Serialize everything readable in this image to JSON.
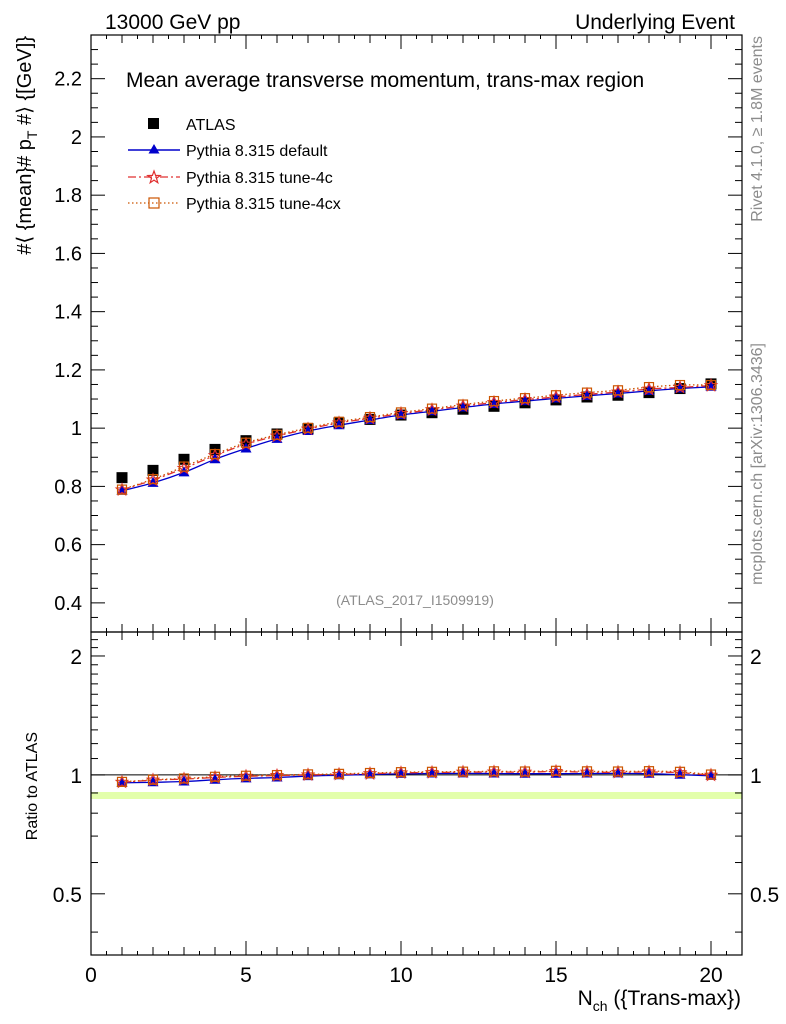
{
  "header": {
    "left": "13000 GeV pp",
    "right": "Underlying Event"
  },
  "side": {
    "rivet": "Rivet 4.1.0, ≥ 1.8M events",
    "mcplots": "mcplots.cern.ch [arXiv:1306.3436]"
  },
  "chart_data": [
    {
      "type": "scatter",
      "title": "Mean average transverse momentum, trans-max region",
      "watermark": "(ATLAS_2017_I1509919)",
      "ylabel": "#⟨ {mean}# p_T #⟩ {[GeV]}",
      "ylabel_parts": {
        "pre": "#⟨ {mean}# p",
        "sub": "T",
        "post": " #⟩ {[GeV]}"
      },
      "xlim": [
        0,
        21
      ],
      "ylim": [
        0.3,
        2.35
      ],
      "yticks": [
        0.4,
        0.6,
        0.8,
        1,
        1.2,
        1.4,
        1.6,
        1.8,
        2,
        2.2
      ],
      "ytick_labels": [
        "0.4",
        "0.6",
        "0.8",
        "1",
        "1.2",
        "1.4",
        "1.6",
        "1.8",
        "2",
        "2.2"
      ],
      "x": [
        1,
        2,
        3,
        4,
        5,
        6,
        7,
        8,
        9,
        10,
        11,
        12,
        13,
        14,
        15,
        16,
        17,
        18,
        19,
        20
      ],
      "series": [
        {
          "name": "ATLAS",
          "color": "#000000",
          "marker": "square-filled",
          "values": [
            0.83,
            0.855,
            0.893,
            0.927,
            0.957,
            0.98,
            0.998,
            1.018,
            1.03,
            1.045,
            1.053,
            1.065,
            1.075,
            1.087,
            1.097,
            1.107,
            1.113,
            1.122,
            1.136,
            1.152
          ]
        },
        {
          "name": "Pythia 8.315 default",
          "color": "#0000cc",
          "marker": "triangle-filled",
          "line": "solid",
          "values": [
            0.785,
            0.812,
            0.848,
            0.893,
            0.93,
            0.963,
            0.99,
            1.01,
            1.028,
            1.045,
            1.058,
            1.071,
            1.083,
            1.093,
            1.102,
            1.111,
            1.119,
            1.128,
            1.136,
            1.142
          ]
        },
        {
          "name": "Pythia 8.315 tune-4c",
          "color": "#e03030",
          "marker": "star-open",
          "line": "dashdot",
          "values": [
            0.788,
            0.822,
            0.862,
            0.906,
            0.945,
            0.973,
            0.997,
            1.018,
            1.034,
            1.05,
            1.063,
            1.076,
            1.088,
            1.098,
            1.107,
            1.116,
            1.124,
            1.134,
            1.14,
            1.146
          ]
        },
        {
          "name": "Pythia 8.315 tune-4cx",
          "color": "#cc5500",
          "marker": "square-open",
          "line": "dotted",
          "values": [
            0.789,
            0.825,
            0.868,
            0.911,
            0.95,
            0.977,
            1.001,
            1.022,
            1.038,
            1.054,
            1.067,
            1.081,
            1.093,
            1.103,
            1.113,
            1.122,
            1.13,
            1.141,
            1.148,
            1.148
          ]
        }
      ]
    },
    {
      "type": "scatter",
      "ylabel": "Ratio to ATLAS",
      "xlabel": "N_ch ({Trans-max})",
      "xlabel_parts": {
        "pre": "N",
        "sub": "ch",
        "post": " ({Trans-max})"
      },
      "xlim": [
        0,
        21
      ],
      "ylim": [
        0.35,
        2.3
      ],
      "yticks": [
        0.5,
        1,
        2
      ],
      "ytick_labels": [
        "0.5",
        "1",
        "2"
      ],
      "xticks": [
        0,
        5,
        10,
        15,
        20
      ],
      "xtick_labels": [
        "0",
        "5",
        "10",
        "15",
        "20"
      ],
      "reference": 1,
      "x": [
        1,
        2,
        3,
        4,
        5,
        6,
        7,
        8,
        9,
        10,
        11,
        12,
        13,
        14,
        15,
        16,
        17,
        18,
        19,
        20
      ],
      "series": [
        {
          "name": "Pythia 8.315 default",
          "color": "#0000cc",
          "marker": "triangle-filled",
          "line": "solid",
          "values": [
            0.955,
            0.958,
            0.962,
            0.972,
            0.98,
            0.985,
            0.993,
            0.998,
            1.003,
            1.006,
            1.008,
            1.009,
            1.008,
            1.007,
            1.007,
            1.008,
            1.009,
            1.007,
            1.001,
            0.994
          ]
        },
        {
          "name": "Pythia 8.315 tune-4c",
          "color": "#e03030",
          "marker": "star-open",
          "line": "dashdot",
          "values": [
            0.958,
            0.97,
            0.976,
            0.985,
            0.992,
            0.996,
            1.0,
            1.003,
            1.007,
            1.012,
            1.014,
            1.016,
            1.017,
            1.016,
            1.02,
            1.016,
            1.015,
            1.017,
            1.013,
            0.998
          ]
        },
        {
          "name": "Pythia 8.315 tune-4cx",
          "color": "#cc5500",
          "marker": "square-open",
          "line": "dotted",
          "values": [
            0.96,
            0.972,
            0.979,
            0.989,
            0.995,
            0.999,
            1.003,
            1.006,
            1.011,
            1.016,
            1.018,
            1.019,
            1.021,
            1.02,
            1.024,
            1.021,
            1.02,
            1.022,
            1.018,
            1.002
          ]
        }
      ]
    }
  ]
}
